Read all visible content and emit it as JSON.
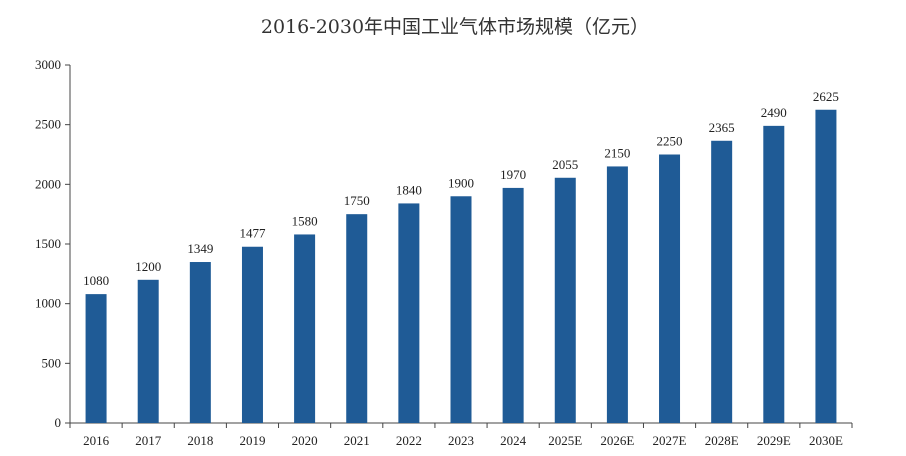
{
  "chart_data": {
    "type": "bar",
    "title": "2016-2030年中国工业气体市场规模（亿元）",
    "categories": [
      "2016",
      "2017",
      "2018",
      "2019",
      "2020",
      "2021",
      "2022",
      "2023",
      "2024",
      "2025E",
      "2026E",
      "2027E",
      "2028E",
      "2029E",
      "2030E"
    ],
    "values": [
      1080,
      1200,
      1349,
      1477,
      1580,
      1750,
      1840,
      1900,
      1970,
      2055,
      2150,
      2250,
      2365,
      2490,
      2625
    ],
    "ylim": [
      0,
      3000
    ],
    "yticks": [
      0,
      500,
      1000,
      1500,
      2000,
      2500,
      3000
    ],
    "grid": false,
    "legend": "none",
    "bar_color": "#1f5b96",
    "axis_color": "#444444"
  }
}
